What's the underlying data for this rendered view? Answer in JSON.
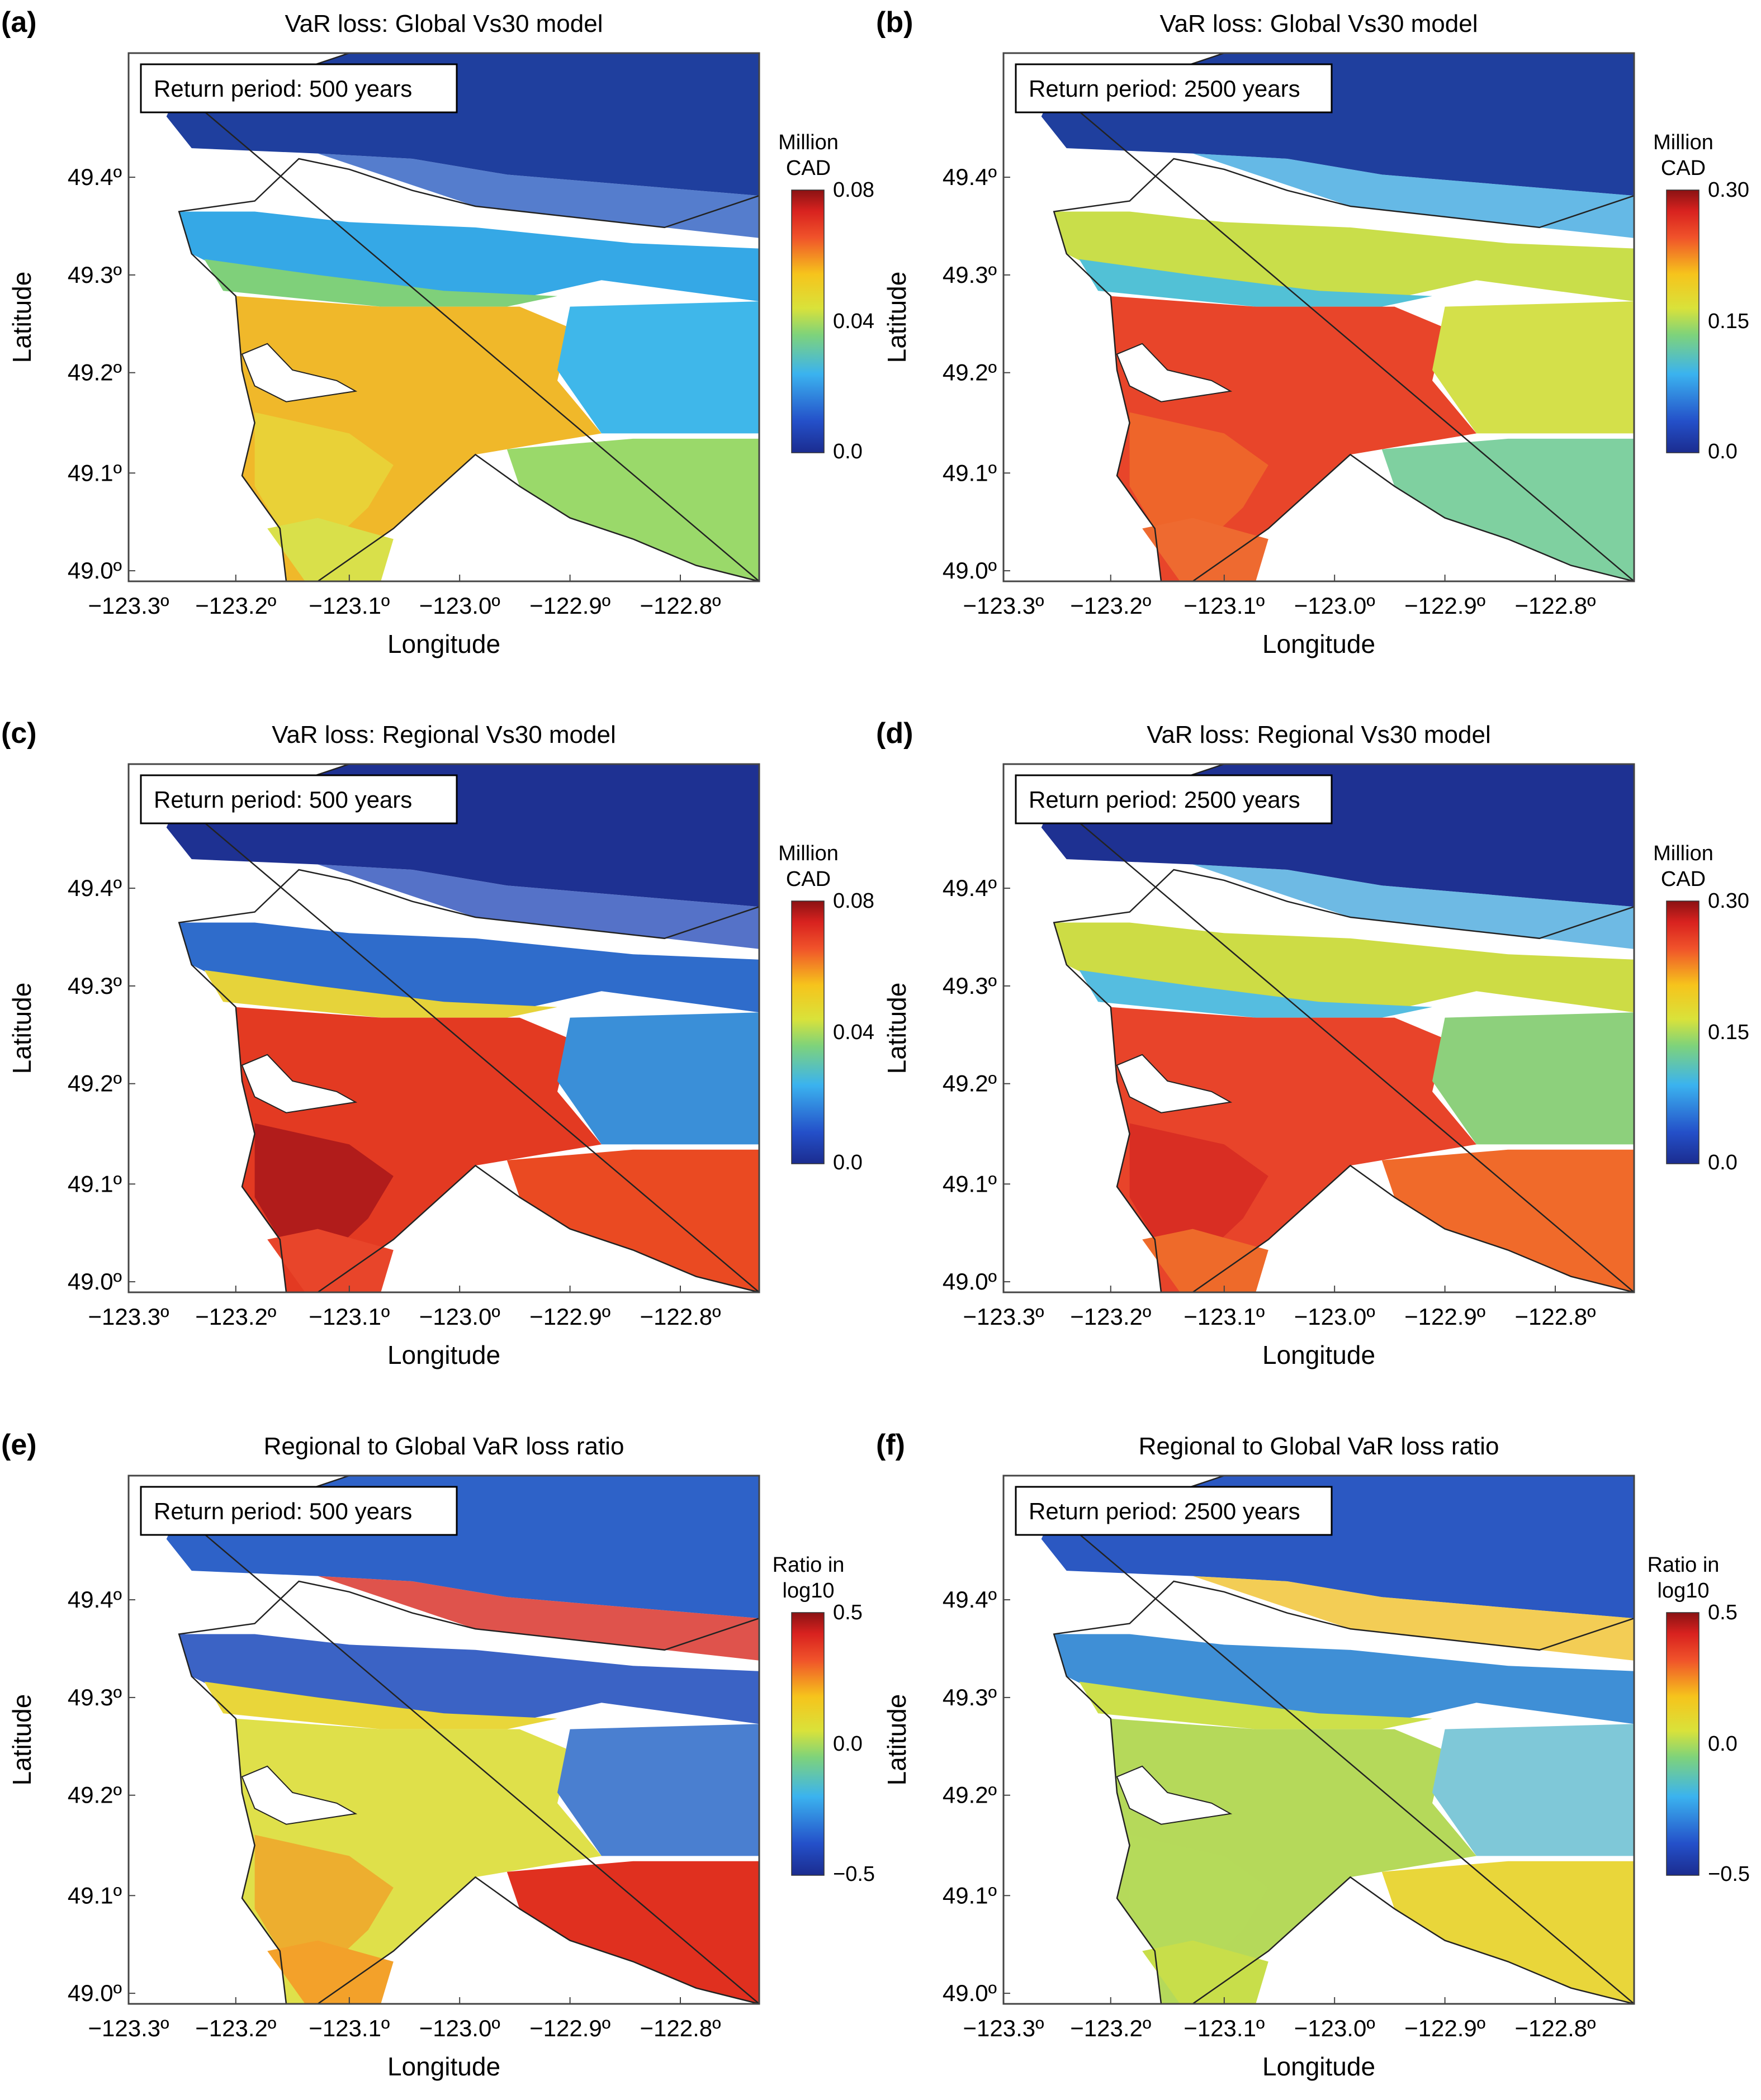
{
  "chart_data": [
    {
      "type": "heatmap",
      "panel_label": "(a)",
      "title": "VaR loss: Global Vs30 model",
      "annotation": "Return period: 500 years",
      "xlabel": "Longitude",
      "ylabel": "Latitude",
      "x_ticks": [
        "−123.3º",
        "−123.2º",
        "−123.1º",
        "−123.0º",
        "−122.9º",
        "−122.8º"
      ],
      "y_ticks": [
        "49.0º",
        "49.1º",
        "49.2º",
        "49.3º",
        "49.4º"
      ],
      "colorbar": {
        "title": [
          "Million",
          "CAD"
        ],
        "ticks": [
          "0.08",
          "0.04",
          "0.0"
        ],
        "range": [
          0,
          0.08
        ]
      }
    },
    {
      "type": "heatmap",
      "panel_label": "(b)",
      "title": "VaR loss: Global Vs30 model",
      "annotation": "Return period: 2500 years",
      "xlabel": "Longitude",
      "ylabel": "Latitude",
      "x_ticks": [
        "−123.3º",
        "−123.2º",
        "−123.1º",
        "−123.0º",
        "−122.9º",
        "−122.8º"
      ],
      "y_ticks": [
        "49.0º",
        "49.1º",
        "49.2º",
        "49.3º",
        "49.4º"
      ],
      "colorbar": {
        "title": [
          "Million",
          "CAD"
        ],
        "ticks": [
          "0.30",
          "0.15",
          "0.0"
        ],
        "range": [
          0,
          0.3
        ]
      }
    },
    {
      "type": "heatmap",
      "panel_label": "(c)",
      "title": "VaR loss: Regional Vs30 model",
      "annotation": "Return period: 500 years",
      "xlabel": "Longitude",
      "ylabel": "Latitude",
      "x_ticks": [
        "−123.3º",
        "−123.2º",
        "−123.1º",
        "−123.0º",
        "−122.9º",
        "−122.8º"
      ],
      "y_ticks": [
        "49.0º",
        "49.1º",
        "49.2º",
        "49.3º",
        "49.4º"
      ],
      "colorbar": {
        "title": [
          "Million",
          "CAD"
        ],
        "ticks": [
          "0.08",
          "0.04",
          "0.0"
        ],
        "range": [
          0,
          0.08
        ]
      }
    },
    {
      "type": "heatmap",
      "panel_label": "(d)",
      "title": "VaR loss: Regional Vs30 model",
      "annotation": "Return period: 2500 years",
      "xlabel": "Longitude",
      "ylabel": "Latitude",
      "x_ticks": [
        "−123.3º",
        "−123.2º",
        "−123.1º",
        "−123.0º",
        "−122.9º",
        "−122.8º"
      ],
      "y_ticks": [
        "49.0º",
        "49.1º",
        "49.2º",
        "49.3º",
        "49.4º"
      ],
      "colorbar": {
        "title": [
          "Million",
          "CAD"
        ],
        "ticks": [
          "0.30",
          "0.15",
          "0.0"
        ],
        "range": [
          0,
          0.3
        ]
      }
    },
    {
      "type": "heatmap",
      "panel_label": "(e)",
      "title": "Regional to Global VaR loss ratio",
      "annotation": "Return period: 500 years",
      "xlabel": "Longitude",
      "ylabel": "Latitude",
      "x_ticks": [
        "−123.3º",
        "−123.2º",
        "−123.1º",
        "−123.0º",
        "−122.9º",
        "−122.8º"
      ],
      "y_ticks": [
        "49.0º",
        "49.1º",
        "49.2º",
        "49.3º",
        "49.4º"
      ],
      "colorbar": {
        "title": [
          "Ratio in",
          "log10"
        ],
        "ticks": [
          "0.5",
          "0.0",
          "−0.5"
        ],
        "range": [
          -0.5,
          0.5
        ]
      }
    },
    {
      "type": "heatmap",
      "panel_label": "(f)",
      "title": "Regional to Global VaR loss ratio",
      "annotation": "Return period: 2500 years",
      "xlabel": "Longitude",
      "ylabel": "Latitude",
      "x_ticks": [
        "−123.3º",
        "−123.2º",
        "−123.1º",
        "−123.0º",
        "−122.9º",
        "−122.8º"
      ],
      "y_ticks": [
        "49.0º",
        "49.1º",
        "49.2º",
        "49.3º",
        "49.4º"
      ],
      "colorbar": {
        "title": [
          "Ratio in",
          "log10"
        ],
        "ticks": [
          "0.5",
          "0.0",
          "−0.5"
        ],
        "range": [
          -0.5,
          0.5
        ]
      }
    }
  ]
}
